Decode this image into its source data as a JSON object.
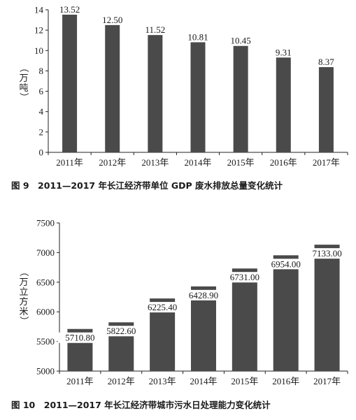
{
  "chart_data": [
    {
      "type": "bar",
      "title": "图 9　2011—2017 年长江经济带单位 GDP 废水排放总量变化统计",
      "ylabel": "（万吨）",
      "ylim": [
        0,
        14
      ],
      "yticks": [
        0,
        2,
        4,
        6,
        8,
        10,
        12,
        14
      ],
      "categories": [
        "2011年",
        "2012年",
        "2013年",
        "2014年",
        "2015年",
        "2016年",
        "2017年"
      ],
      "values": [
        13.52,
        12.5,
        11.52,
        10.81,
        10.45,
        9.31,
        8.37
      ],
      "value_labels": [
        "13.52",
        "12.50",
        "11.52",
        "10.81",
        "10.45",
        "9.31",
        "8.37"
      ],
      "bar_color": "#4a4a4a",
      "grid": false
    },
    {
      "type": "bar",
      "title": "图 10　2011—2017 年长江经济带城市污水日处理能力变化统计",
      "ylabel": "（万立方米）",
      "ylim": [
        5000,
        7500
      ],
      "yticks": [
        5000,
        5500,
        6000,
        6500,
        7000,
        7500
      ],
      "categories": [
        "2011年",
        "2012年",
        "2013年",
        "2014年",
        "2015年",
        "2016年",
        "2017年"
      ],
      "values": [
        5710.8,
        5822.6,
        6225.4,
        6428.9,
        6731.0,
        6954.0,
        7133.0
      ],
      "value_labels": [
        "5710.80",
        "5822.60",
        "6225.40",
        "6428.90",
        "6731.00",
        "6954.00",
        "7133.00"
      ],
      "bar_color": "#4a4a4a",
      "grid": false
    }
  ]
}
